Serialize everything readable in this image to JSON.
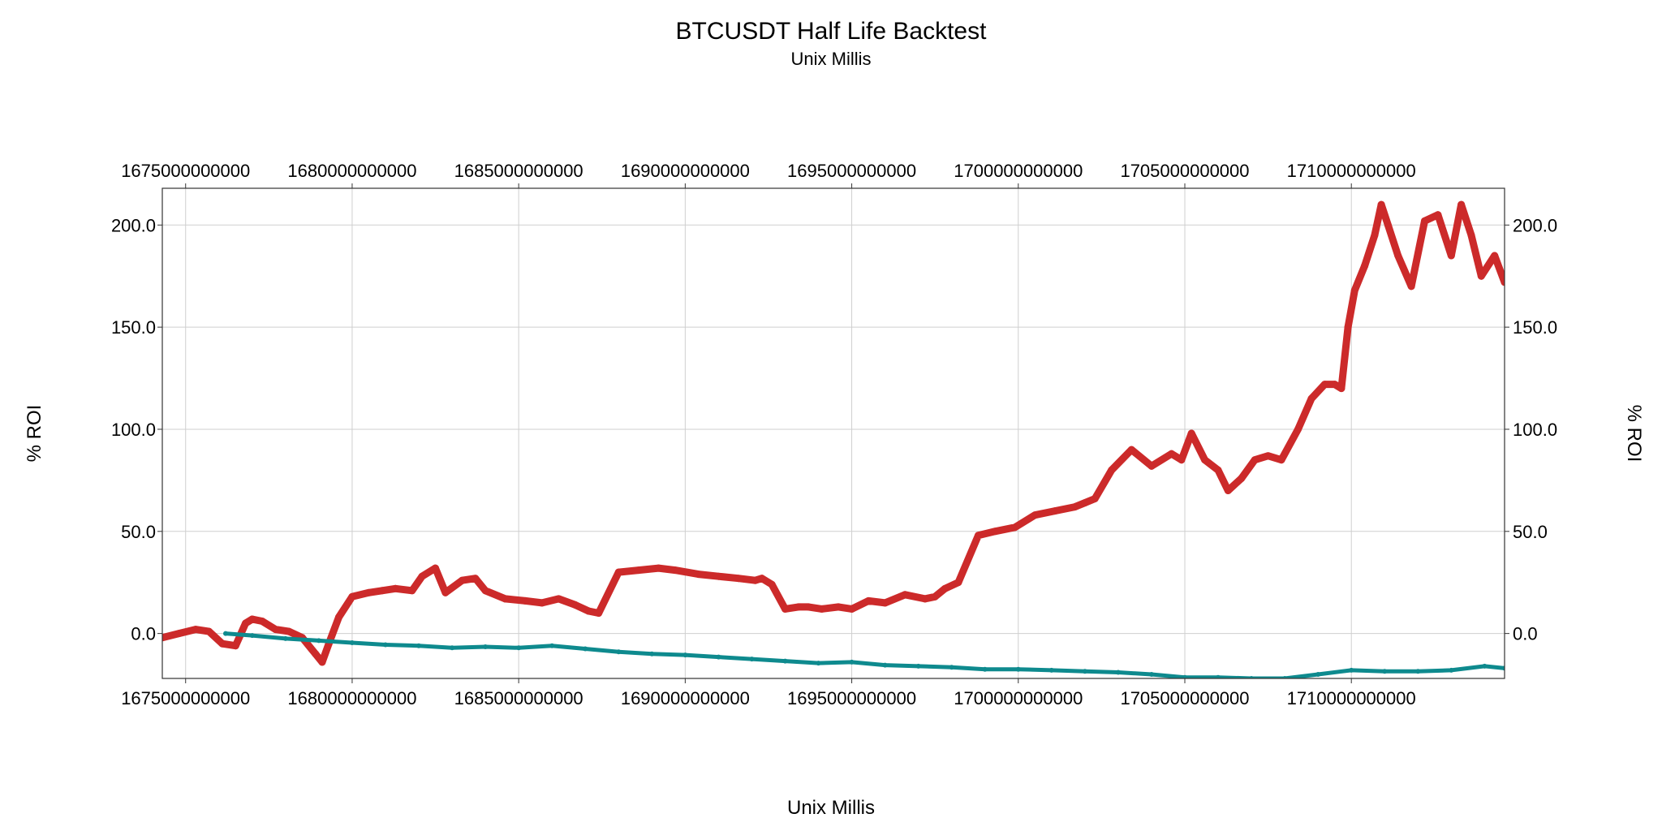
{
  "chart_data": {
    "type": "scatter",
    "title": "BTCUSDT Half Life Backtest",
    "subtitle": "Unix Millis",
    "xlabel": "Unix Millis",
    "ylabel": "% ROI",
    "ylabel_right": "% ROI",
    "xlim": [
      1674300000000,
      1714600000000
    ],
    "ylim": [
      -22,
      218
    ],
    "x_ticks": [
      1675000000000,
      1680000000000,
      1685000000000,
      1690000000000,
      1695000000000,
      1700000000000,
      1705000000000,
      1710000000000
    ],
    "x_tick_labels": [
      "1675000000000",
      "1680000000000",
      "1685000000000",
      "1690000000000",
      "1695000000000",
      "1700000000000",
      "1705000000000",
      "1710000000000"
    ],
    "y_ticks": [
      0,
      50,
      100,
      150,
      200
    ],
    "y_tick_labels": [
      "0.0",
      "50.0",
      "100.0",
      "150.0",
      "200.0"
    ],
    "grid": true,
    "colors": {
      "strategy": "#cc2a2a",
      "benchmark": "#0e8a8e"
    },
    "series": [
      {
        "key": "strategy",
        "color": "#cc2a2a",
        "x": [
          1674300000000,
          1674800000000,
          1675300000000,
          1675700000000,
          1676100000000,
          1676500000000,
          1676800000000,
          1677000000000,
          1677300000000,
          1677700000000,
          1678100000000,
          1678500000000,
          1678900000000,
          1679100000000,
          1679300000000,
          1679600000000,
          1680000000000,
          1680500000000,
          1680900000000,
          1681300000000,
          1681800000000,
          1682100000000,
          1682500000000,
          1682800000000,
          1683300000000,
          1683700000000,
          1684000000000,
          1684600000000,
          1685200000000,
          1685700000000,
          1686200000000,
          1686700000000,
          1687100000000,
          1687400000000,
          1688000000000,
          1688600000000,
          1689200000000,
          1689700000000,
          1690400000000,
          1691000000000,
          1691600000000,
          1692100000000,
          1692300000000,
          1692600000000,
          1693000000000,
          1693400000000,
          1693700000000,
          1694100000000,
          1694600000000,
          1695000000000,
          1695500000000,
          1696000000000,
          1696600000000,
          1697200000000,
          1697500000000,
          1697800000000,
          1698200000000,
          1698800000000,
          1699300000000,
          1699900000000,
          1700500000000,
          1701100000000,
          1701700000000,
          1702000000000,
          1702300000000,
          1702800000000,
          1703400000000,
          1704000000000,
          1704600000000,
          1704900000000,
          1705200000000,
          1705600000000,
          1706000000000,
          1706300000000,
          1706700000000,
          1707100000000,
          1707500000000,
          1707900000000,
          1708400000000,
          1708800000000,
          1709200000000,
          1709500000000,
          1709700000000,
          1709900000000,
          1710100000000,
          1710400000000,
          1710700000000,
          1710900000000,
          1711100000000,
          1711400000000,
          1711800000000,
          1712200000000,
          1712600000000,
          1713000000000,
          1713300000000,
          1713600000000,
          1713900000000,
          1714300000000,
          1714600000000
        ],
        "y": [
          -2,
          0,
          2,
          1,
          -5,
          -6,
          5,
          7,
          6,
          2,
          1,
          -2,
          -10,
          -14,
          -5,
          8,
          18,
          20,
          21,
          22,
          21,
          28,
          32,
          20,
          26,
          27,
          21,
          17,
          16,
          15,
          17,
          14,
          11,
          10,
          30,
          31,
          32,
          31,
          29,
          28,
          27,
          26,
          27,
          24,
          12,
          13,
          13,
          12,
          13,
          12,
          16,
          15,
          19,
          17,
          18,
          22,
          25,
          48,
          50,
          52,
          58,
          60,
          62,
          64,
          66,
          80,
          90,
          82,
          88,
          85,
          98,
          85,
          80,
          70,
          76,
          85,
          87,
          85,
          100,
          115,
          122,
          122,
          120,
          150,
          168,
          180,
          195,
          210,
          200,
          185,
          170,
          202,
          205,
          185,
          210,
          195,
          175,
          185,
          172
        ]
      },
      {
        "key": "benchmark",
        "color": "#0e8a8e",
        "x": [
          1676200000000,
          1677000000000,
          1678000000000,
          1679000000000,
          1680000000000,
          1681000000000,
          1682000000000,
          1683000000000,
          1684000000000,
          1685000000000,
          1686000000000,
          1687000000000,
          1688000000000,
          1689000000000,
          1690000000000,
          1691000000000,
          1692000000000,
          1693000000000,
          1694000000000,
          1695000000000,
          1696000000000,
          1697000000000,
          1698000000000,
          1699000000000,
          1700000000000,
          1701000000000,
          1702000000000,
          1703000000000,
          1704000000000,
          1705000000000,
          1706000000000,
          1707000000000,
          1708000000000,
          1709000000000,
          1710000000000,
          1711000000000,
          1712000000000,
          1713000000000,
          1714000000000,
          1714600000000
        ],
        "y": [
          0,
          -1,
          -2.5,
          -3.5,
          -4.5,
          -5.5,
          -6,
          -7,
          -6.5,
          -7,
          -6,
          -7.5,
          -9,
          -10,
          -10.5,
          -11.5,
          -12.5,
          -13.5,
          -14.5,
          -14,
          -15.5,
          -16,
          -16.5,
          -17.5,
          -17.5,
          -18,
          -18.5,
          -19,
          -20,
          -21.5,
          -21.5,
          -22,
          -22,
          -20,
          -18,
          -18.5,
          -18.5,
          -18,
          -16,
          -17
        ]
      }
    ]
  }
}
